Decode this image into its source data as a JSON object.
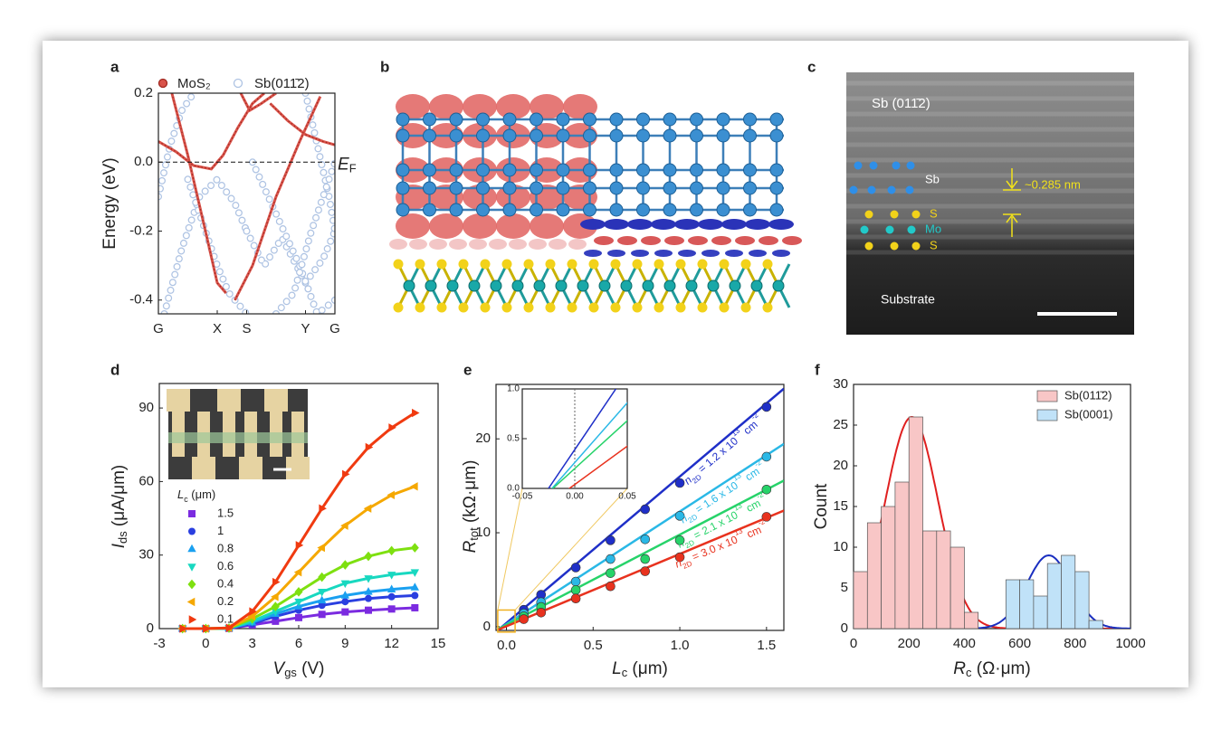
{
  "chart_data": [
    {
      "label": "a",
      "type": "band",
      "ylabel": "Energy (eV)",
      "xlim": [
        0,
        3
      ],
      "xticks": [
        {
          "value": 0,
          "label": "G"
        },
        {
          "value": 1,
          "label": "X"
        },
        {
          "value": 1.5,
          "label": "S"
        },
        {
          "value": 2.5,
          "label": "Y"
        },
        {
          "value": 3,
          "label": "G"
        }
      ],
      "ylim": [
        -0.44,
        0.2
      ],
      "yticks": [
        0.2,
        {
          "value": 0,
          "label": "0.0"
        },
        -0.2,
        -0.4
      ],
      "fermi_level": 0,
      "fermi_label": [
        {
          "text": "E",
          "style": "italic"
        },
        {
          "text": "F",
          "style": "sub"
        }
      ],
      "series": [
        {
          "name": "Sb(011̄2)",
          "color": "#aec3e3",
          "marker": "open",
          "bands": [
            {
              "x": [
                0,
                0.2,
                0.4,
                0.6
              ],
              "y": [
                -0.1,
                0.05,
                0.15,
                0.2
              ]
            },
            {
              "x": [
                0.1,
                0.4,
                0.7,
                1.0,
                1.3,
                1.5
              ],
              "y": [
                -0.44,
                -0.25,
                -0.1,
                -0.05,
                -0.12,
                -0.2
              ]
            },
            {
              "x": [
                0.5,
                0.8,
                1.0,
                1.2,
                1.5
              ],
              "y": [
                -0.05,
                -0.2,
                -0.3,
                -0.38,
                -0.44
              ]
            },
            {
              "x": [
                1.5,
                1.8,
                2.1,
                2.5,
                2.8,
                3.0
              ],
              "y": [
                -0.2,
                -0.3,
                -0.22,
                -0.35,
                -0.28,
                -0.2
              ]
            },
            {
              "x": [
                1.6,
                2.0,
                2.4,
                2.7,
                3.0
              ],
              "y": [
                0.0,
                -0.15,
                -0.3,
                -0.44,
                -0.4
              ]
            },
            {
              "x": [
                2.5,
                2.7,
                2.9,
                3.0
              ],
              "y": [
                0.2,
                0.05,
                -0.1,
                -0.2
              ]
            },
            {
              "x": [
                2.0,
                2.3,
                2.6,
                3.0
              ],
              "y": [
                -0.44,
                -0.38,
                -0.2,
                0.0
              ]
            }
          ]
        },
        {
          "name": "MoS₂",
          "color": "#d9534a",
          "marker": "filled",
          "bands": [
            {
              "x": [
                0.23,
                0.5,
                0.8,
                1.0,
                1.15
              ],
              "y": [
                0.2,
                0.02,
                -0.2,
                -0.35,
                -0.38
              ]
            },
            {
              "x": [
                1.3,
                1.6,
                2.0,
                2.4,
                2.75
              ],
              "y": [
                -0.4,
                -0.3,
                -0.1,
                0.06,
                0.19
              ]
            },
            {
              "x": [
                0,
                0.3,
                0.6,
                0.9,
                1.1,
                1.35,
                1.6,
                1.8
              ],
              "y": [
                0.06,
                0.03,
                -0.01,
                -0.02,
                0.02,
                0.1,
                0.17,
                0.2
              ]
            },
            {
              "x": [
                1.4,
                1.55,
                1.75,
                2.0
              ],
              "y": [
                0.2,
                0.15,
                0.17,
                0.2
              ]
            },
            {
              "x": [
                1.9,
                2.2,
                2.5,
                2.8,
                3.0
              ],
              "y": [
                0.17,
                0.12,
                0.08,
                0.06,
                0.05
              ]
            }
          ]
        }
      ]
    },
    {
      "label": "d",
      "type": "line",
      "xlabel": [
        {
          "text": "V",
          "style": "italic"
        },
        {
          "text": "gs",
          "style": "sub"
        },
        {
          "text": " (V)",
          "style": "normal"
        }
      ],
      "ylabel": [
        {
          "text": "I",
          "style": "italic"
        },
        {
          "text": "ds",
          "style": "sub"
        },
        {
          "text": " (μA/μm)",
          "style": "normal"
        }
      ],
      "legend_title": [
        {
          "text": "L",
          "style": "italic"
        },
        {
          "text": "c",
          "style": "sub"
        },
        {
          "text": " (μm)",
          "style": "normal"
        }
      ],
      "xlim": [
        -3,
        15
      ],
      "xticks": [
        -3,
        0,
        3,
        6,
        9,
        12,
        15
      ],
      "ylim": [
        0,
        100
      ],
      "yticks": [
        0,
        30,
        60,
        90
      ],
      "x": [
        -1.5,
        0,
        1.5,
        3,
        4.5,
        6,
        7.5,
        9,
        10.5,
        12,
        13.5
      ],
      "series": [
        {
          "name": "1.5",
          "color": "#7b2be0",
          "marker": "square",
          "values": [
            0,
            0,
            0.1,
            1.5,
            3,
            4.5,
            5.8,
            6.8,
            7.5,
            8,
            8.5
          ]
        },
        {
          "name": "1",
          "color": "#2a3fe0",
          "marker": "circle",
          "values": [
            0,
            0,
            0.1,
            2,
            5,
            7.5,
            9.5,
            11,
            12.3,
            13,
            13.5
          ]
        },
        {
          "name": "0.8",
          "color": "#1aa0f0",
          "marker": "triangle-up",
          "values": [
            0,
            0,
            0.1,
            2.5,
            6,
            9,
            11.5,
            13.5,
            15,
            16,
            16.8
          ]
        },
        {
          "name": "0.6",
          "color": "#18d8c0",
          "marker": "triangle-down",
          "values": [
            0,
            0,
            0.2,
            3,
            7,
            11,
            15,
            18.5,
            20.5,
            22,
            23
          ]
        },
        {
          "name": "0.4",
          "color": "#7ee010",
          "marker": "diamond",
          "values": [
            0,
            0,
            0.2,
            4,
            9,
            15,
            21,
            26,
            29.5,
            31.8,
            33
          ]
        },
        {
          "name": "0.2",
          "color": "#f5a800",
          "marker": "triangle-left",
          "values": [
            0,
            0,
            0.3,
            5,
            13,
            23,
            33,
            42,
            49,
            54.5,
            58
          ]
        },
        {
          "name": "0.1",
          "color": "#f03a10",
          "marker": "triangle-right",
          "values": [
            0,
            0,
            0.3,
            7,
            19,
            34,
            49,
            63,
            74,
            82,
            88
          ]
        }
      ]
    },
    {
      "label": "e",
      "type": "scatter",
      "xlabel": [
        {
          "text": "L",
          "style": "italic"
        },
        {
          "text": "c",
          "style": "sub"
        },
        {
          "text": " (μm)",
          "style": "normal"
        }
      ],
      "ylabel": [
        {
          "text": "R",
          "style": "italic"
        },
        {
          "text": "tot",
          "style": "sub"
        },
        {
          "text": " (kΩ·μm)",
          "style": "normal"
        }
      ],
      "xlim": [
        -0.06,
        1.6
      ],
      "xticks": [
        {
          "value": 0,
          "label": "0.0"
        },
        0.5,
        {
          "value": 1,
          "label": "1.0"
        },
        1.5
      ],
      "ylim": [
        -0.4,
        25.8
      ],
      "yticks": [
        0,
        10,
        20
      ],
      "x": [
        0.1,
        0.2,
        0.4,
        0.6,
        0.8,
        1.0,
        1.5
      ],
      "series": [
        {
          "name": [
            {
              "text": "n",
              "style": "italic"
            },
            {
              "text": "2D",
              "style": "sub"
            },
            {
              "text": " = 1.2 x 10",
              "style": "normal"
            },
            {
              "text": "13",
              "style": "sup"
            },
            {
              "text": " cm",
              "style": "normal"
            },
            {
              "text": "-2",
              "style": "sup"
            }
          ],
          "color": "#1f2fc8",
          "values": [
            1.8,
            3.4,
            6.3,
            9.2,
            12.5,
            15.3,
            23.4
          ],
          "fit": {
            "x": [
              -0.05,
              1.6
            ],
            "y": [
              -0.39,
              25.35
            ]
          }
        },
        {
          "name": [
            {
              "text": "n",
              "style": "italic"
            },
            {
              "text": "2D",
              "style": "sub"
            },
            {
              "text": " = 1.6 x 10",
              "style": "normal"
            },
            {
              "text": "13",
              "style": "sup"
            },
            {
              "text": " cm",
              "style": "normal"
            },
            {
              "text": "-2",
              "style": "sup"
            }
          ],
          "color": "#2ab8e6",
          "values": [
            1.4,
            2.6,
            4.8,
            7.2,
            9.3,
            11.8,
            18.1
          ],
          "fit": {
            "x": [
              -0.05,
              1.6
            ],
            "y": [
              -0.34,
              19.46
            ]
          }
        },
        {
          "name": [
            {
              "text": "n",
              "style": "italic"
            },
            {
              "text": "2D",
              "style": "sub"
            },
            {
              "text": " = 2.1 x 10",
              "style": "normal"
            },
            {
              "text": "13",
              "style": "sup"
            },
            {
              "text": " cm",
              "style": "normal"
            },
            {
              "text": "-2",
              "style": "sup"
            }
          ],
          "color": "#27d36a",
          "values": [
            1.1,
            2.1,
            3.9,
            5.7,
            7.2,
            9.2,
            14.6
          ],
          "fit": {
            "x": [
              -0.05,
              1.6
            ],
            "y": [
              -0.28,
              15.56
            ]
          }
        },
        {
          "name": [
            {
              "text": "n",
              "style": "italic"
            },
            {
              "text": "2D",
              "style": "sub"
            },
            {
              "text": " = 3.0 x 10",
              "style": "normal"
            },
            {
              "text": "13",
              "style": "sup"
            },
            {
              "text": " cm",
              "style": "normal"
            },
            {
              "text": "-2",
              "style": "sup"
            }
          ],
          "color": "#e8321e",
          "values": [
            0.8,
            1.5,
            3.0,
            4.3,
            5.9,
            7.4,
            11.7
          ],
          "fit": {
            "x": [
              -0.05,
              1.6
            ],
            "y": [
              -0.345,
              12.36
            ]
          }
        }
      ],
      "inset": {
        "xlim": [
          -0.05,
          0.05
        ],
        "xticks": [
          -0.05,
          {
            "value": 0,
            "label": "0.00"
          },
          0.05
        ],
        "ylim": [
          0,
          1
        ],
        "yticks": [
          {
            "value": 0,
            "label": "0.0"
          },
          0.5,
          {
            "value": 1,
            "label": "1.0"
          }
        ]
      }
    },
    {
      "label": "f",
      "type": "histogram",
      "ylabel": "Count",
      "xlabel": [
        {
          "text": "R",
          "style": "italic"
        },
        {
          "text": "c",
          "style": "sub"
        },
        {
          "text": " (Ω·μm)",
          "style": "normal"
        }
      ],
      "xlim": [
        0,
        1000
      ],
      "xticks": [
        0,
        200,
        400,
        600,
        800,
        1000
      ],
      "ylim": [
        0,
        30
      ],
      "yticks": [
        0,
        5,
        10,
        15,
        20,
        25,
        30
      ],
      "series": [
        {
          "name": "Sb(011̄2)",
          "color": "#f8c6c6",
          "fit_color": "#e02020",
          "bins": [
            0,
            50,
            100,
            150,
            200,
            250,
            300,
            350,
            400,
            450
          ],
          "counts": [
            7,
            13,
            15,
            18,
            26,
            12,
            12,
            10,
            2
          ],
          "fit": {
            "amplitude": 26,
            "center": 210,
            "sigma": 95
          }
        },
        {
          "name": "Sb(0001)",
          "color": "#c0e2f8",
          "fit_color": "#1a2fc0",
          "bins": [
            550,
            600,
            650,
            700,
            750,
            800,
            850,
            900
          ],
          "counts": [
            6,
            6,
            4,
            8,
            9,
            7,
            1
          ],
          "fit": {
            "amplitude": 9,
            "center": 705,
            "sigma": 80
          }
        }
      ]
    }
  ],
  "images": [
    {
      "label": "b"
    },
    {
      "label": "c",
      "title": "Sb (011̄2)",
      "sb": "Sb",
      "spacing": "~0.285 nm",
      "s_top": "S",
      "mo": "Mo",
      "s_bottom": "S",
      "substrate": "Substrate"
    }
  ]
}
